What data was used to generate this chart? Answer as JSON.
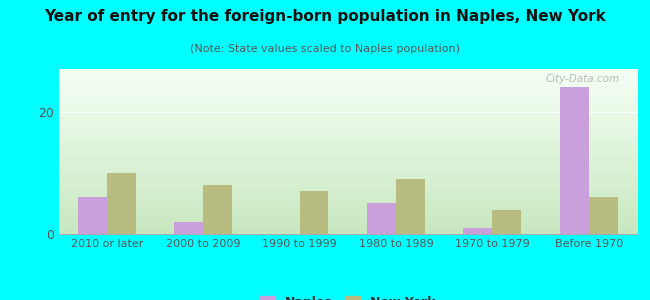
{
  "title": "Year of entry for the foreign-born population in Naples, New York",
  "subtitle": "(Note: State values scaled to Naples population)",
  "categories": [
    "2010 or later",
    "2000 to 2009",
    "1990 to 1999",
    "1980 to 1989",
    "1970 to 1979",
    "Before 1970"
  ],
  "naples_values": [
    6,
    2,
    0,
    5,
    1,
    24
  ],
  "ny_values": [
    10,
    8,
    7,
    9,
    4,
    6
  ],
  "naples_color": "#c9a0dc",
  "ny_color": "#b8bc80",
  "background_outer": "#00ffff",
  "ylim": [
    0,
    27
  ],
  "yticks": [
    0,
    20
  ],
  "bar_width": 0.3,
  "legend_labels": [
    "Naples",
    "New York"
  ],
  "watermark": "City-Data.com"
}
